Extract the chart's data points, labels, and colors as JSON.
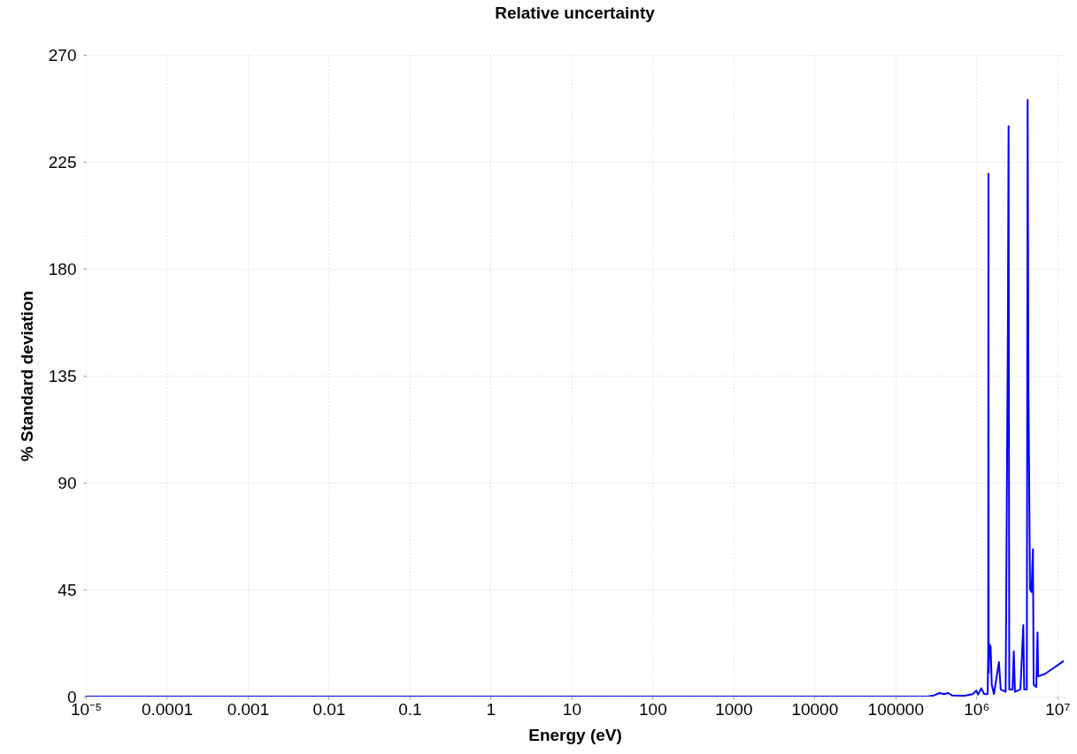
{
  "chart_data": {
    "type": "line",
    "title": "Relative uncertainty",
    "xlabel": "Energy (eV)",
    "ylabel": "% Standard deviation",
    "log": "x",
    "grid": true,
    "line_style": "solid",
    "marker": "none",
    "xlim": [
      1e-05,
      12000000.0
    ],
    "xticks": [
      {
        "value": 1e-05,
        "label": "10⁻⁵"
      },
      0.0001,
      0.001,
      0.01,
      0.1,
      1,
      10,
      100,
      1000,
      10000,
      100000,
      {
        "value": 1000000,
        "label": "10⁶"
      },
      {
        "value": 10000000,
        "label": "10⁷"
      }
    ],
    "ylim": [
      0,
      270
    ],
    "yticks": [
      0,
      45,
      90,
      135,
      180,
      225,
      270
    ],
    "series": [
      {
        "color": "#0000ff",
        "x": [
          1e-05,
          250000,
          300000,
          350000,
          400000,
          450000,
          500000,
          700000,
          900000,
          1000000,
          1050000,
          1150000,
          1250000,
          1380000,
          1400000,
          1410000,
          1420000,
          1450000,
          1500000,
          1550000,
          1650000,
          1900000,
          2000000,
          2300000,
          2450000,
          2500000,
          2550000,
          2800000,
          2900000,
          3000000,
          3500000,
          3800000,
          3900000,
          4200000,
          4300000,
          4400000,
          4600000,
          4800000,
          5000000,
          5100000,
          5500000,
          5700000,
          5800000,
          7000000,
          9000000,
          12000000
        ],
        "values": [
          0,
          0,
          0.5,
          1.5,
          1,
          1.5,
          0.5,
          0.3,
          1,
          2.5,
          0.8,
          3.5,
          1,
          1,
          18,
          220,
          10,
          22,
          21,
          5,
          1,
          14.5,
          3,
          2,
          155,
          240,
          3,
          3,
          19,
          2,
          3,
          30,
          3,
          3,
          251,
          130,
          45,
          44,
          62,
          5,
          4,
          27,
          8.5,
          9.5,
          12,
          15
        ]
      }
    ]
  }
}
